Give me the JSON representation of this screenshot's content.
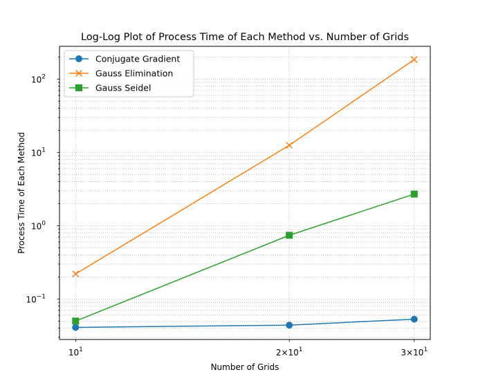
{
  "chart_data": {
    "type": "line",
    "title": "Log-Log Plot of Process Time of Each Method vs. Number of Grids",
    "xlabel": "Number of Grids",
    "ylabel": "Process Time of Each Method",
    "x": [
      10,
      20,
      30
    ],
    "xscale": "log",
    "yscale": "log",
    "xlim": [
      9.49,
      31.6
    ],
    "ylim": [
      0.028,
      280
    ],
    "grid": true,
    "legend_loc": "upper left",
    "x_ticks": [
      {
        "value": 10,
        "base": "10",
        "exp": "1"
      },
      {
        "value": 20,
        "base": "2×10",
        "exp": "1"
      },
      {
        "value": 30,
        "base": "3×10",
        "exp": "1"
      }
    ],
    "y_ticks": [
      {
        "value": 0.1,
        "base": "10",
        "exp": "−1"
      },
      {
        "value": 1,
        "base": "10",
        "exp": "0"
      },
      {
        "value": 10,
        "base": "10",
        "exp": "1"
      },
      {
        "value": 100,
        "base": "10",
        "exp": "2"
      }
    ],
    "series": [
      {
        "name": "Conjugate Gradient",
        "values": [
          0.041,
          0.044,
          0.053
        ],
        "color": "#1f77b4",
        "marker": "circle"
      },
      {
        "name": "Gauss Elimination",
        "values": [
          0.22,
          12.5,
          185
        ],
        "color": "#ff7f0e",
        "marker": "x"
      },
      {
        "name": "Gauss Seidel",
        "values": [
          0.05,
          0.74,
          2.7
        ],
        "color": "#2ca02c",
        "marker": "square"
      }
    ]
  }
}
